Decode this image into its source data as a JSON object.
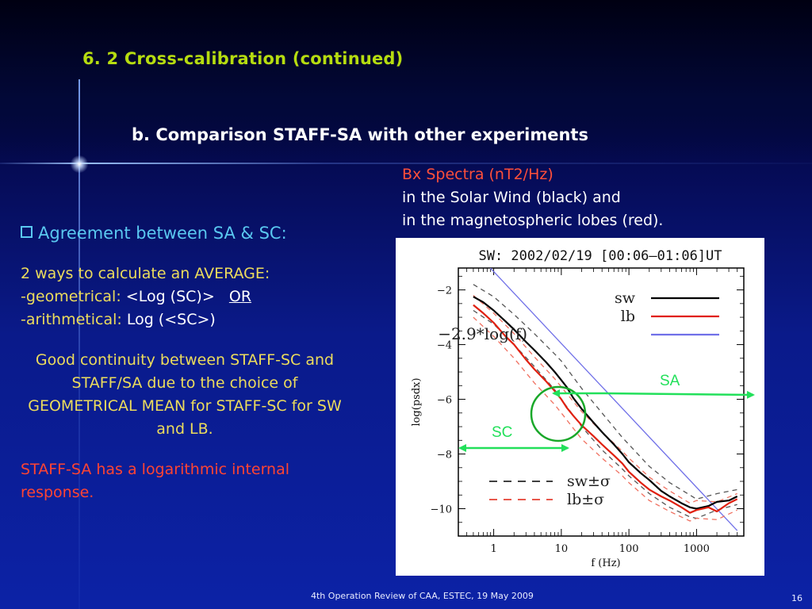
{
  "slide": {
    "title": "6. 2 Cross-calibration (continued)",
    "subtitle": "b. Comparison STAFF-SA with other experiments",
    "caption": {
      "line1": "Bx Spectra (nT2/Hz)",
      "line2": "in the Solar Wind (black) and",
      "line3": "in the magnetospheric lobes (red)."
    },
    "left": {
      "bullet": "Agreement between SA & SC:",
      "ways_heading": "2 ways to calculate an AVERAGE:",
      "geo_prefix": "-geometrical: ",
      "geo_formula": "<Log (SC)>",
      "or": "OR",
      "arith_prefix": "-arithmetical: ",
      "arith_formula": "Log (<SC>)",
      "continuity": "Good continuity between STAFF-SC and STAFF/SA due to the choice of GEOMETRICAL MEAN for STAFF-SC for SW and LB.",
      "response": "STAFF-SA has a logarithmic internal response."
    },
    "footer": "4th Operation Review of CAA, ESTEC, 19 May 2009",
    "page_number": "16",
    "colors": {
      "title": "#b6dc10",
      "yellow_text": "#ecdc5c",
      "red_text": "#ff4432",
      "annotation": "#22e05a",
      "bullet": "#5ac8f0"
    }
  },
  "annotations": {
    "sa_label": "SA",
    "sc_label": "SC"
  },
  "chart_data": {
    "type": "line",
    "title": "SW: 2002/02/19 [00:06–01:06]UT",
    "xlabel": "f (Hz)",
    "ylabel": "log(psdx)",
    "xscale": "log",
    "xlim": [
      0.3,
      5000
    ],
    "ylim": [
      -11,
      -1.2
    ],
    "xticks": [
      1,
      10,
      100,
      1000
    ],
    "xtick_labels": [
      "1",
      "10",
      "100",
      "1000"
    ],
    "yticks": [
      -2,
      -4,
      -6,
      -8,
      -10
    ],
    "ytick_labels": [
      "−2",
      "−4",
      "−6",
      "−8",
      "−10"
    ],
    "legend_top": [
      {
        "label": "sw",
        "color": "#000000",
        "style": "solid"
      },
      {
        "label": "lb",
        "color": "#e02010",
        "style": "solid"
      },
      {
        "label": "−2.9*log(f)",
        "color": "#7070e8",
        "style": "solid"
      }
    ],
    "legend_bottom": [
      {
        "label": "sw±σ",
        "color": "#000000",
        "style": "dashed"
      },
      {
        "label": "lb±σ",
        "color": "#e02010",
        "style": "dashed"
      }
    ],
    "series": [
      {
        "name": "sw",
        "color": "#000000",
        "width": 2.2,
        "dash": "",
        "x": [
          0.5,
          0.7,
          1,
          1.5,
          2,
          3,
          4,
          6,
          8,
          10,
          12,
          15,
          20,
          30,
          40,
          60,
          80,
          100,
          150,
          200,
          300,
          400,
          600,
          800,
          1000,
          1500,
          2000,
          3000,
          4000
        ],
        "y": [
          -2.25,
          -2.45,
          -2.75,
          -3.15,
          -3.45,
          -3.9,
          -4.2,
          -4.65,
          -5.0,
          -5.3,
          -5.55,
          -5.95,
          -6.35,
          -6.85,
          -7.2,
          -7.65,
          -8.0,
          -8.3,
          -8.7,
          -8.95,
          -9.35,
          -9.55,
          -9.8,
          -9.95,
          -10.0,
          -9.9,
          -9.75,
          -9.7,
          -9.55
        ]
      },
      {
        "name": "lb",
        "color": "#e02010",
        "width": 2.2,
        "dash": "",
        "x": [
          0.5,
          0.7,
          1,
          1.5,
          2,
          3,
          4,
          6,
          8,
          10,
          12,
          15,
          20,
          30,
          40,
          60,
          80,
          100,
          150,
          200,
          300,
          400,
          600,
          800,
          1000,
          1500,
          2000,
          3000,
          4000
        ],
        "y": [
          -2.55,
          -2.85,
          -3.2,
          -3.7,
          -4.0,
          -4.55,
          -4.9,
          -5.35,
          -5.7,
          -6.0,
          -6.3,
          -6.6,
          -6.95,
          -7.35,
          -7.65,
          -8.05,
          -8.35,
          -8.65,
          -9.05,
          -9.3,
          -9.55,
          -9.7,
          -9.95,
          -10.15,
          -10.05,
          -9.95,
          -10.1,
          -9.8,
          -9.65
        ]
      },
      {
        "name": "sw+σ",
        "color": "#555555",
        "width": 1.3,
        "dash": "6,5",
        "x": [
          0.5,
          1,
          2,
          4,
          8,
          10,
          20,
          40,
          80,
          100,
          200,
          400,
          800,
          1000,
          2000,
          4000
        ],
        "y": [
          -1.8,
          -2.25,
          -2.9,
          -3.6,
          -4.35,
          -4.6,
          -5.6,
          -6.5,
          -7.4,
          -7.65,
          -8.45,
          -9.05,
          -9.5,
          -9.65,
          -9.45,
          -9.3
        ]
      },
      {
        "name": "sw−σ",
        "color": "#555555",
        "width": 1.3,
        "dash": "6,5",
        "x": [
          0.5,
          1,
          2,
          4,
          8,
          10,
          20,
          40,
          80,
          100,
          200,
          400,
          800,
          1000,
          2000,
          4000
        ],
        "y": [
          -2.75,
          -3.25,
          -4.0,
          -4.8,
          -5.65,
          -6.0,
          -7.0,
          -7.85,
          -8.55,
          -8.8,
          -9.45,
          -9.95,
          -10.3,
          -10.35,
          -10.05,
          -9.85
        ]
      },
      {
        "name": "lb+σ",
        "color": "#f07060",
        "width": 1.3,
        "dash": "6,5",
        "x": [
          0.5,
          1,
          2,
          4,
          8,
          10,
          20,
          40,
          80,
          100,
          200,
          400,
          800,
          1000,
          2000,
          4000
        ],
        "y": [
          -2.2,
          -2.85,
          -3.6,
          -4.45,
          -5.25,
          -5.55,
          -6.45,
          -7.2,
          -7.9,
          -8.15,
          -8.85,
          -9.35,
          -9.8,
          -9.7,
          -9.75,
          -9.45
        ]
      },
      {
        "name": "lb−σ",
        "color": "#f07060",
        "width": 1.3,
        "dash": "6,5",
        "x": [
          0.5,
          1,
          2,
          4,
          8,
          10,
          20,
          40,
          80,
          100,
          200,
          400,
          800,
          1000,
          2000,
          4000
        ],
        "y": [
          -3.0,
          -3.7,
          -4.5,
          -5.4,
          -6.2,
          -6.5,
          -7.45,
          -8.15,
          -8.8,
          -9.05,
          -9.7,
          -10.1,
          -10.45,
          -10.35,
          -10.4,
          -10.05
        ]
      },
      {
        "name": "−2.9*log(f)",
        "color": "#7070e8",
        "width": 1.3,
        "dash": "",
        "x": [
          0.75,
          4000
        ],
        "y": [
          -1.0,
          -10.8
        ]
      }
    ]
  }
}
